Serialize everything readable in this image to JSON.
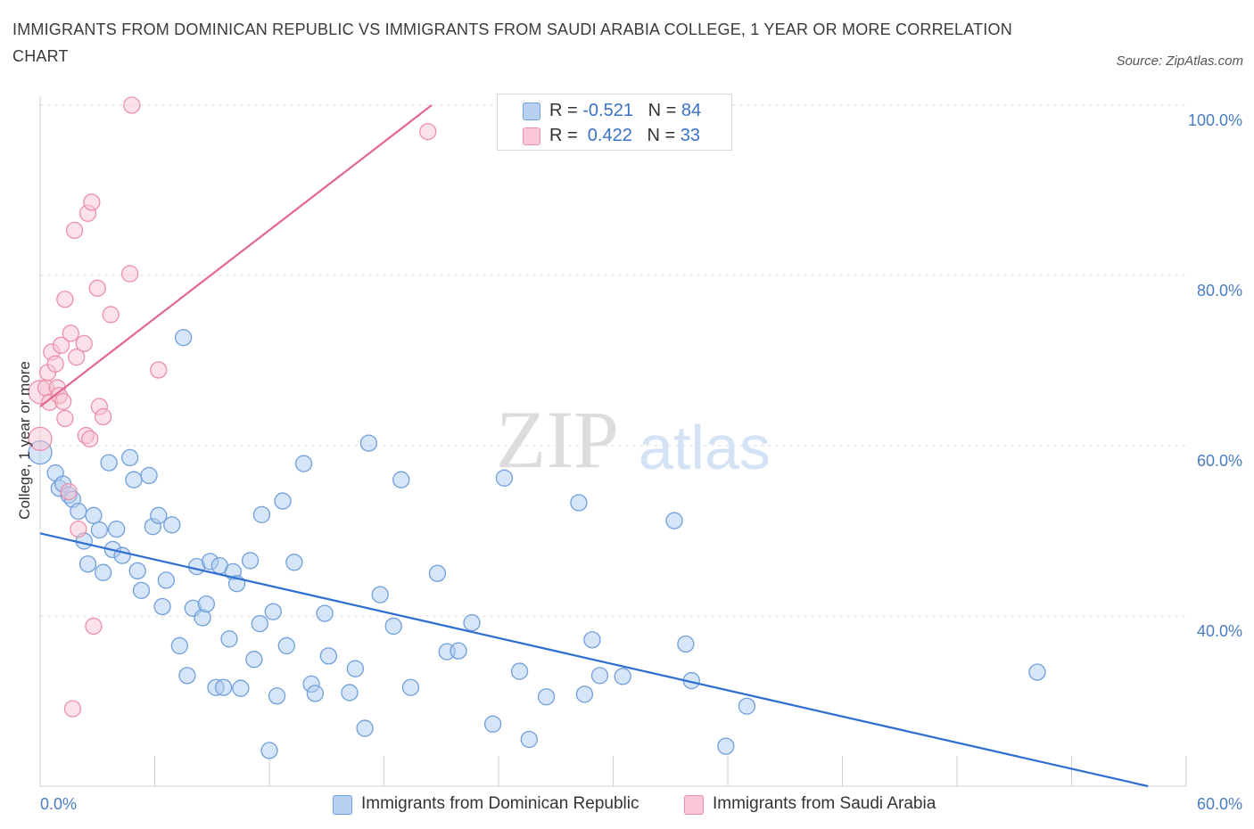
{
  "header": {
    "title": "IMMIGRANTS FROM DOMINICAN REPUBLIC VS IMMIGRANTS FROM SAUDI ARABIA COLLEGE, 1 YEAR OR MORE CORRELATION CHART",
    "source": "Source: ZipAtlas.com"
  },
  "watermark": {
    "zip": "ZIP",
    "atlas": "atlas"
  },
  "legend": {
    "rows": [
      {
        "r_label": "R = ",
        "r_value": "-0.521",
        "n_label": "N = ",
        "n_value": "84"
      },
      {
        "r_label": "R = ",
        "r_value": " 0.422",
        "n_label": "N = ",
        "n_value": "33"
      }
    ]
  },
  "colors": {
    "dominican_fill": "#aecbf0",
    "dominican_stroke": "#6f9fdc",
    "dominican_line": "#2f6fd0",
    "saudi_fill": "#f8c3d2",
    "saudi_stroke": "#ec8fab",
    "saudi_line": "#e2668d",
    "grid": "#dcdcdc",
    "tick_text": "#4a7cc4"
  },
  "chart_data": {
    "type": "scatter",
    "title": "IMMIGRANTS FROM DOMINICAN REPUBLIC VS IMMIGRANTS FROM SAUDI ARABIA COLLEGE, 1 YEAR OR MORE CORRELATION CHART",
    "xlabel": "",
    "ylabel": "College, 1 year or more",
    "xlim": [
      0,
      60
    ],
    "ylim": [
      20,
      100
    ],
    "x_tick_labels": [
      "0.0%",
      "60.0%"
    ],
    "y_ticks": [
      {
        "value": 100,
        "label": "100.0%"
      },
      {
        "value": 80,
        "label": "80.0%"
      },
      {
        "value": 60,
        "label": "60.0%"
      },
      {
        "value": 40,
        "label": "40.0%"
      }
    ],
    "grid": true,
    "series": [
      {
        "name": "Immigrants from Dominican Republic",
        "color": "#6f9fdc",
        "trend": {
          "x": [
            0,
            58
          ],
          "y": [
            49.7,
            20.0
          ]
        },
        "points": [
          [
            0.0,
            59.2
          ],
          [
            0.8,
            56.8
          ],
          [
            1.0,
            55.0
          ],
          [
            1.2,
            55.5
          ],
          [
            1.5,
            54.2
          ],
          [
            1.7,
            53.7
          ],
          [
            2.0,
            52.3
          ],
          [
            2.3,
            48.8
          ],
          [
            2.5,
            46.1
          ],
          [
            2.8,
            51.8
          ],
          [
            3.1,
            50.1
          ],
          [
            3.3,
            45.1
          ],
          [
            3.6,
            58.0
          ],
          [
            3.8,
            47.8
          ],
          [
            4.0,
            50.2
          ],
          [
            4.3,
            47.1
          ],
          [
            4.7,
            58.6
          ],
          [
            4.9,
            56.0
          ],
          [
            5.1,
            45.3
          ],
          [
            5.3,
            43.0
          ],
          [
            5.7,
            56.5
          ],
          [
            5.9,
            50.5
          ],
          [
            6.2,
            51.8
          ],
          [
            6.4,
            41.1
          ],
          [
            6.6,
            44.2
          ],
          [
            6.9,
            50.7
          ],
          [
            7.3,
            36.5
          ],
          [
            7.5,
            72.7
          ],
          [
            7.7,
            33.0
          ],
          [
            8.0,
            40.9
          ],
          [
            8.2,
            45.8
          ],
          [
            8.5,
            39.8
          ],
          [
            8.7,
            41.4
          ],
          [
            8.9,
            46.4
          ],
          [
            9.2,
            31.6
          ],
          [
            9.4,
            45.9
          ],
          [
            9.6,
            31.6
          ],
          [
            9.9,
            37.3
          ],
          [
            10.1,
            45.2
          ],
          [
            10.3,
            43.8
          ],
          [
            10.5,
            31.5
          ],
          [
            11.0,
            46.5
          ],
          [
            11.2,
            34.9
          ],
          [
            11.5,
            39.1
          ],
          [
            11.6,
            51.9
          ],
          [
            12.2,
            40.5
          ],
          [
            12.4,
            30.6
          ],
          [
            12.7,
            53.5
          ],
          [
            12.9,
            36.5
          ],
          [
            13.3,
            46.3
          ],
          [
            13.8,
            57.9
          ],
          [
            14.2,
            32.0
          ],
          [
            14.4,
            30.9
          ],
          [
            14.9,
            40.3
          ],
          [
            15.1,
            35.3
          ],
          [
            16.2,
            31.0
          ],
          [
            16.5,
            33.8
          ],
          [
            17.0,
            26.8
          ],
          [
            17.2,
            60.3
          ],
          [
            17.8,
            42.5
          ],
          [
            18.5,
            38.8
          ],
          [
            18.9,
            56.0
          ],
          [
            19.4,
            31.6
          ],
          [
            20.8,
            45.0
          ],
          [
            21.3,
            35.8
          ],
          [
            21.9,
            35.9
          ],
          [
            22.6,
            39.2
          ],
          [
            23.7,
            27.3
          ],
          [
            24.3,
            56.2
          ],
          [
            25.1,
            33.5
          ],
          [
            25.6,
            25.5
          ],
          [
            26.5,
            30.5
          ],
          [
            28.2,
            53.3
          ],
          [
            28.5,
            30.8
          ],
          [
            28.9,
            37.2
          ],
          [
            29.3,
            33.0
          ],
          [
            30.5,
            32.9
          ],
          [
            33.2,
            51.2
          ],
          [
            33.8,
            36.7
          ],
          [
            34.1,
            32.4
          ],
          [
            35.9,
            24.7
          ],
          [
            37.0,
            29.4
          ],
          [
            52.2,
            33.4
          ],
          [
            12.0,
            24.2
          ]
        ]
      },
      {
        "name": "Immigrants from Saudi Arabia",
        "color": "#ec8fab",
        "trend": {
          "x": [
            0,
            20.5
          ],
          "y": [
            64.6,
            100.0
          ]
        },
        "points": [
          [
            0.0,
            66.3
          ],
          [
            0.0,
            60.8
          ],
          [
            0.3,
            66.8
          ],
          [
            0.4,
            68.6
          ],
          [
            0.5,
            65.1
          ],
          [
            0.6,
            71.0
          ],
          [
            0.8,
            69.6
          ],
          [
            0.9,
            66.8
          ],
          [
            1.0,
            65.9
          ],
          [
            1.1,
            71.8
          ],
          [
            1.2,
            65.2
          ],
          [
            1.3,
            63.2
          ],
          [
            1.3,
            77.2
          ],
          [
            1.5,
            54.6
          ],
          [
            1.6,
            73.2
          ],
          [
            1.7,
            29.1
          ],
          [
            1.8,
            85.3
          ],
          [
            1.9,
            70.4
          ],
          [
            2.0,
            50.2
          ],
          [
            2.3,
            72.0
          ],
          [
            2.4,
            61.2
          ],
          [
            2.5,
            87.3
          ],
          [
            2.6,
            60.8
          ],
          [
            2.7,
            88.6
          ],
          [
            2.8,
            38.8
          ],
          [
            3.0,
            78.5
          ],
          [
            3.1,
            64.6
          ],
          [
            3.3,
            63.4
          ],
          [
            3.7,
            75.4
          ],
          [
            4.7,
            80.2
          ],
          [
            4.8,
            100.0
          ],
          [
            6.2,
            68.9
          ],
          [
            20.3,
            96.9
          ]
        ]
      }
    ]
  },
  "bottom_legend": {
    "items": [
      {
        "label": "Immigrants from Dominican Republic"
      },
      {
        "label": "Immigrants from Saudi Arabia"
      }
    ]
  }
}
